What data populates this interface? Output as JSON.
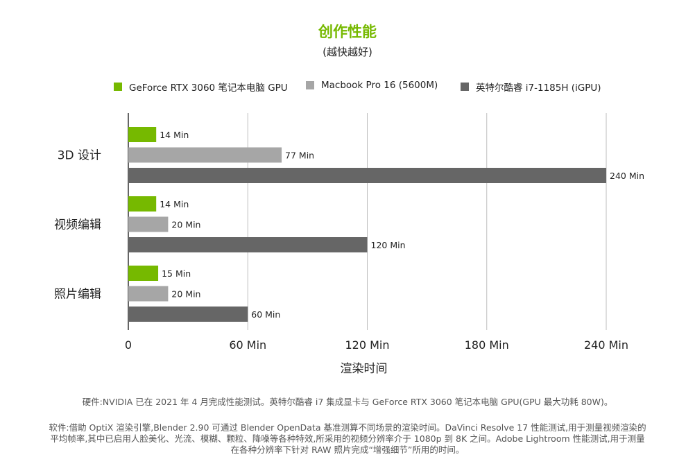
{
  "chart_data": {
    "type": "bar",
    "orientation": "horizontal",
    "title": "创作性能",
    "subtitle": "(越快越好)",
    "xlabel": "渲染时间",
    "ylabel": "",
    "xlim": [
      0,
      240
    ],
    "x_ticks": [
      {
        "value": 0,
        "label": "0"
      },
      {
        "value": 60,
        "label": "60 Min"
      },
      {
        "value": 120,
        "label": "120 Min"
      },
      {
        "value": 180,
        "label": "180 Min"
      },
      {
        "value": 240,
        "label": "240 Min"
      }
    ],
    "grid": true,
    "legend_position": "top",
    "categories": [
      "3D 设计",
      "视频编辑",
      "照片编辑"
    ],
    "series": [
      {
        "name": "GeForce RTX 3060 笔记本电脑 GPU",
        "color": "#76b900",
        "values": [
          14,
          14,
          15
        ],
        "labels": [
          "14 Min",
          "14 Min",
          "15 Min"
        ]
      },
      {
        "name": "Macbook Pro 16 (5600M)",
        "color": "#a6a6a6",
        "values": [
          77,
          20,
          20
        ],
        "labels": [
          "77 Min",
          "20 Min",
          "20 Min"
        ]
      },
      {
        "name": "英特尔酷睿 i7-1185H (iGPU)",
        "color": "#666666",
        "values": [
          240,
          120,
          60
        ],
        "labels": [
          "240 Min",
          "120 Min",
          "60 Min"
        ]
      }
    ]
  },
  "footnotes": {
    "hardware": "硬件:NVIDIA 已在 2021 年 4 月完成性能测试。英特尔酷睿 i7 集成显卡与 GeForce RTX 3060 笔记本电脑 GPU(GPU 最大功耗 80W)。",
    "software_line1": "软件:借助 OptiX 渲染引擎,Blender 2.90 可通过 Blender OpenData 基准测算不同场景的渲染时间。DaVinci Resolve 17 性能测试,用于测量视频渲染的",
    "software_line2": "平均帧率,其中已启用人脸美化、光流、模糊、颗粒、降噪等各种特效,所采用的视频分辨率介于 1080p 到 8K 之间。Adobe Lightroom 性能测试,用于测量",
    "software_line3": "在各种分辨率下针对 RAW 照片完成“增强细节”所用的时间。"
  }
}
